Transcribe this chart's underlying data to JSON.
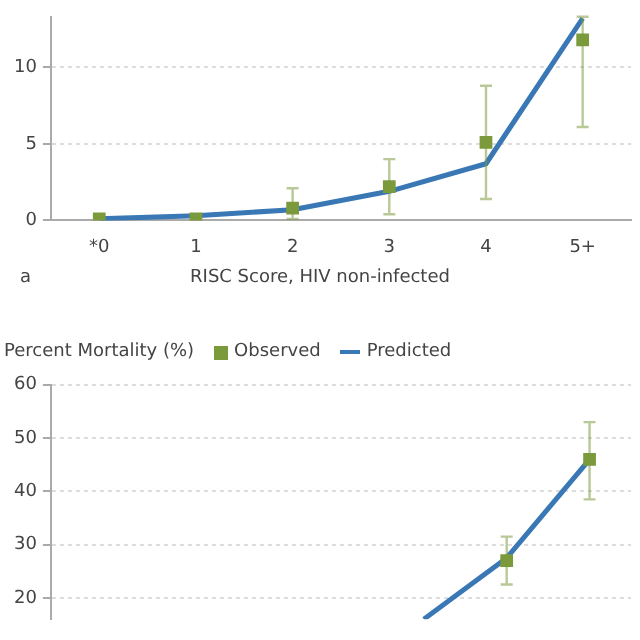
{
  "chart_data": [
    {
      "type": "line",
      "xlabel": "RISC Score, HIV non-infected",
      "annotations": [
        "a"
      ],
      "categories": [
        "*0",
        "1",
        "2",
        "3",
        "4",
        "5+"
      ],
      "ylim": [
        0,
        13.3
      ],
      "yticks": [
        0,
        5,
        10
      ],
      "grid": "y",
      "legend": false,
      "series": [
        {
          "type": "scatter",
          "marker": "square",
          "color": "#7a9a3c",
          "values": [
            0.1,
            0.1,
            0.8,
            2.2,
            5.1,
            11.8
          ],
          "errors": [
            null,
            null,
            [
              0.1,
              2.1
            ],
            [
              0.4,
              4.0
            ],
            [
              1.4,
              8.8
            ],
            [
              6.1,
              13.3
            ]
          ]
        },
        {
          "marker": "none",
          "color": "#3a78b5",
          "values": [
            0.1,
            0.3,
            0.7,
            1.9,
            3.7,
            13.2
          ]
        }
      ]
    },
    {
      "type": "line",
      "ylabel": "Percent Mortality (%)",
      "categories": [
        null,
        null,
        null,
        null,
        null,
        null,
        null
      ],
      "ylim": [
        16,
        60
      ],
      "yticks": [
        20,
        30,
        40,
        50,
        60
      ],
      "grid": "y",
      "legend": "top left",
      "tick_labels": "y",
      "series": [
        {
          "name": "Observed",
          "type": "scatter",
          "marker": "square",
          "color": "#7a9a3c",
          "values": [
            null,
            null,
            null,
            null,
            null,
            27,
            46
          ],
          "errors": [
            null,
            null,
            null,
            null,
            null,
            [
              22.5,
              31.5
            ],
            [
              38.5,
              53
            ]
          ]
        },
        {
          "name": "Predicted",
          "marker": "none",
          "color": "#3a78b5",
          "values": [
            null,
            null,
            null,
            null,
            16,
            27.5,
            46
          ]
        }
      ]
    }
  ]
}
